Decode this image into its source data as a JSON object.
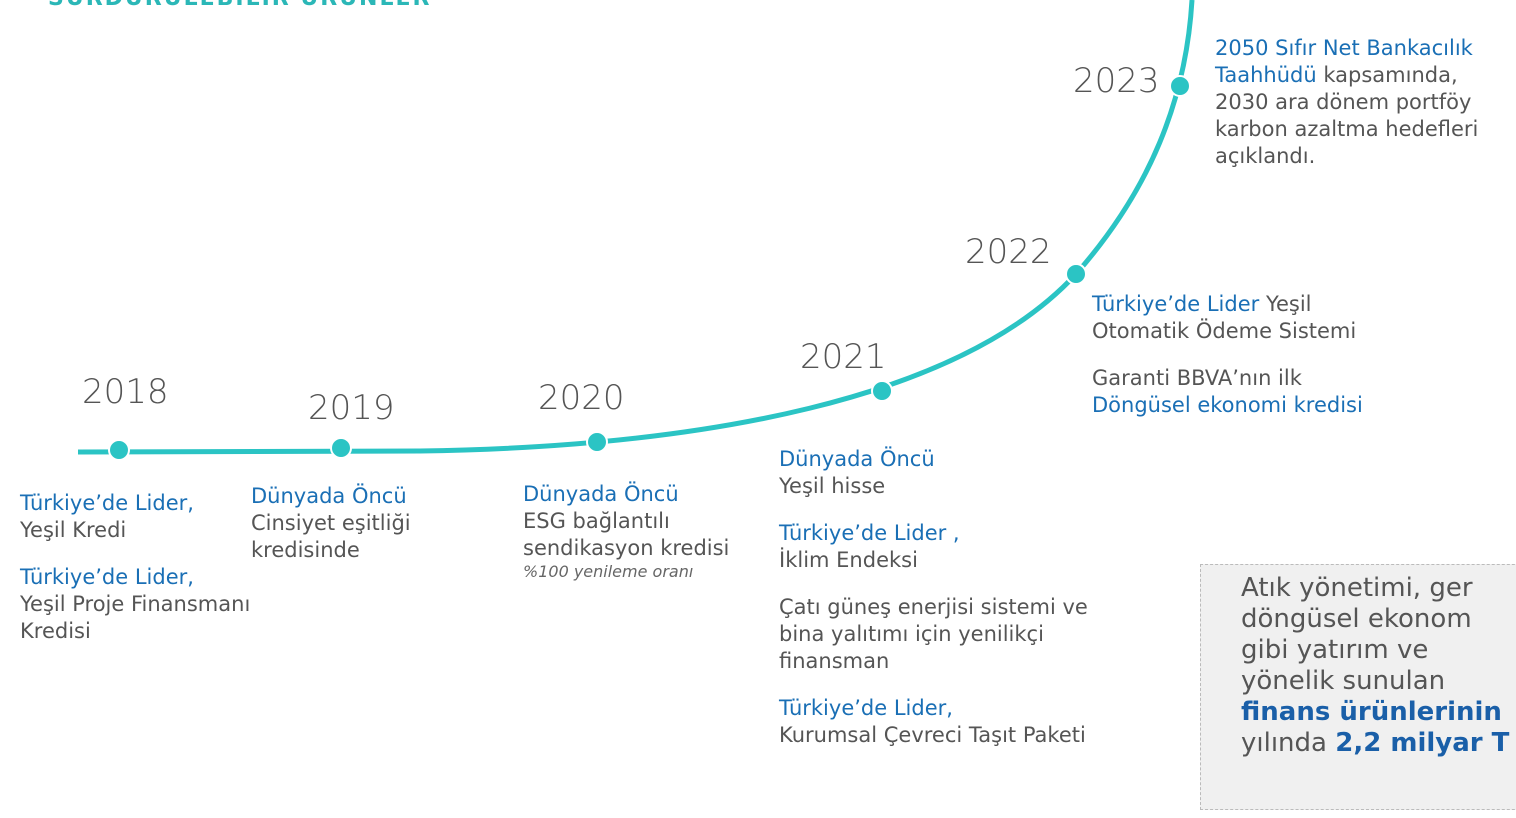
{
  "header": {
    "title": "SÜRDÜRÜLEBİLİR ÜRÜNLER"
  },
  "milestones": [
    {
      "year": "2018",
      "items": [
        {
          "parts": [
            {
              "text": "Türkiye’de Lider,",
              "highlight": true
            },
            {
              "text": "Yeşil Kredi",
              "highlight": false
            }
          ]
        },
        {
          "parts": [
            {
              "text": "Türkiye’de Lider,",
              "highlight": true
            },
            {
              "text": "Yeşil Proje Finansmanı Kredisi",
              "highlight": false
            }
          ]
        }
      ]
    },
    {
      "year": "2019",
      "items": [
        {
          "parts": [
            {
              "text": "Dünyada Öncü",
              "highlight": true
            },
            {
              "text": "Cinsiyet eşitliği kredisinde",
              "highlight": false
            }
          ]
        }
      ]
    },
    {
      "year": "2020",
      "items": [
        {
          "parts": [
            {
              "text": "Dünyada Öncü",
              "highlight": true
            },
            {
              "text": "ESG bağlantılı sendikasyon kredisi",
              "highlight": false
            }
          ],
          "note": "%100 yenileme oranı"
        }
      ]
    },
    {
      "year": "2021",
      "items": [
        {
          "parts": [
            {
              "text": "Dünyada Öncü",
              "highlight": true
            },
            {
              "text": "Yeşil hisse",
              "highlight": false
            }
          ]
        },
        {
          "parts": [
            {
              "text": "Türkiye’de Lider ,",
              "highlight": true
            },
            {
              "text": "İklim Endeksi",
              "highlight": false
            }
          ]
        },
        {
          "parts": [
            {
              "text": "Çatı güneş enerjisi sistemi ve bina yalıtımı için yenilikçi finansman",
              "highlight": false
            }
          ]
        },
        {
          "parts": [
            {
              "text": "Türkiye’de Lider,",
              "highlight": true
            },
            {
              "text": "Kurumsal Çevreci Taşıt Paketi",
              "highlight": false
            }
          ]
        }
      ]
    },
    {
      "year": "2022",
      "items": [
        {
          "parts": [
            {
              "text": "Türkiye’de Lider",
              "highlight": true
            },
            {
              "text": "Yeşil Otomatik Ödeme Sistemi",
              "highlight": false
            }
          ]
        },
        {
          "parts": [
            {
              "text": "Garanti BBVA’nın ilk",
              "highlight": false
            },
            {
              "text": "Döngüsel ekonomi kredisi",
              "highlight": true
            }
          ]
        }
      ]
    },
    {
      "year": "2023",
      "items": [
        {
          "parts": [
            {
              "text": "2050 Sıfır Net Bankacılık Taahhüdü",
              "highlight": true
            },
            {
              "text": "kapsamında, 2030 ara dönem portföy karbon azaltma hedefleri açıklandı.",
              "highlight": false
            }
          ]
        }
      ]
    }
  ],
  "box": {
    "lines": [
      [
        {
          "text": "Atık yönetimi, ger",
          "bold": false
        }
      ],
      [
        {
          "text": "döngüsel ekonom",
          "bold": false
        }
      ],
      [
        {
          "text": "gibi yatırım ve",
          "bold": false
        }
      ],
      [
        {
          "text": "yönelik sunulan",
          "bold": false
        }
      ],
      [
        {
          "text": "finans ürünlerinin",
          "bold": true
        }
      ],
      [
        {
          "text": "yılında",
          "bold": false
        },
        {
          "text": "2,2 milyar T",
          "bold": true
        }
      ]
    ]
  }
}
